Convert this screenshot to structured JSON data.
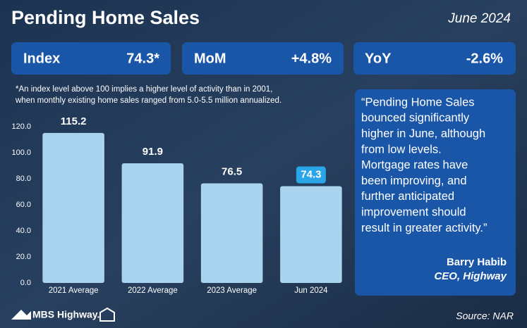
{
  "header": {
    "title": "Pending Home Sales",
    "date": "June 2024"
  },
  "stats": [
    {
      "label": "Index",
      "value": "74.3*"
    },
    {
      "label": "MoM",
      "value": "+4.8%"
    },
    {
      "label": "YoY",
      "value": "-2.6%"
    }
  ],
  "footnote": [
    "*An index level above 100 implies a higher level of activity than in 2001,",
    "when monthly existing home sales ranged from 5.0-5.5 million annualized."
  ],
  "chart_data": {
    "type": "bar",
    "categories": [
      "2021 Average",
      "2022 Average",
      "2023 Average",
      "Jun 2024"
    ],
    "values": [
      115.2,
      91.9,
      76.5,
      74.3
    ],
    "color": "#a9d3ef",
    "label_background_colors": [
      null,
      null,
      null,
      "#2aa6e8"
    ],
    "ylim": [
      0,
      120
    ],
    "yticks": [
      {
        "value": 0,
        "label": "0.0"
      },
      {
        "value": 20,
        "label": "20.0"
      },
      {
        "value": 40,
        "label": "40.0"
      },
      {
        "value": 60,
        "label": "60.0"
      },
      {
        "value": 80,
        "label": "80.0"
      },
      {
        "value": 100,
        "label": "100.0"
      },
      {
        "value": 120,
        "label": "120.0"
      }
    ],
    "grid": false
  },
  "quote": {
    "text": [
      "“Pending Home Sales",
      "bounced significantly",
      "higher in June, although",
      "from low levels.",
      "Mortgage rates have",
      "been improving, and",
      "further anticipated",
      "improvement should",
      "result in greater activity.”"
    ],
    "author": "Barry Habib",
    "role": "CEO, Highway"
  },
  "footer": {
    "logo": "MBS Highway.",
    "source": "Source: NAR"
  }
}
